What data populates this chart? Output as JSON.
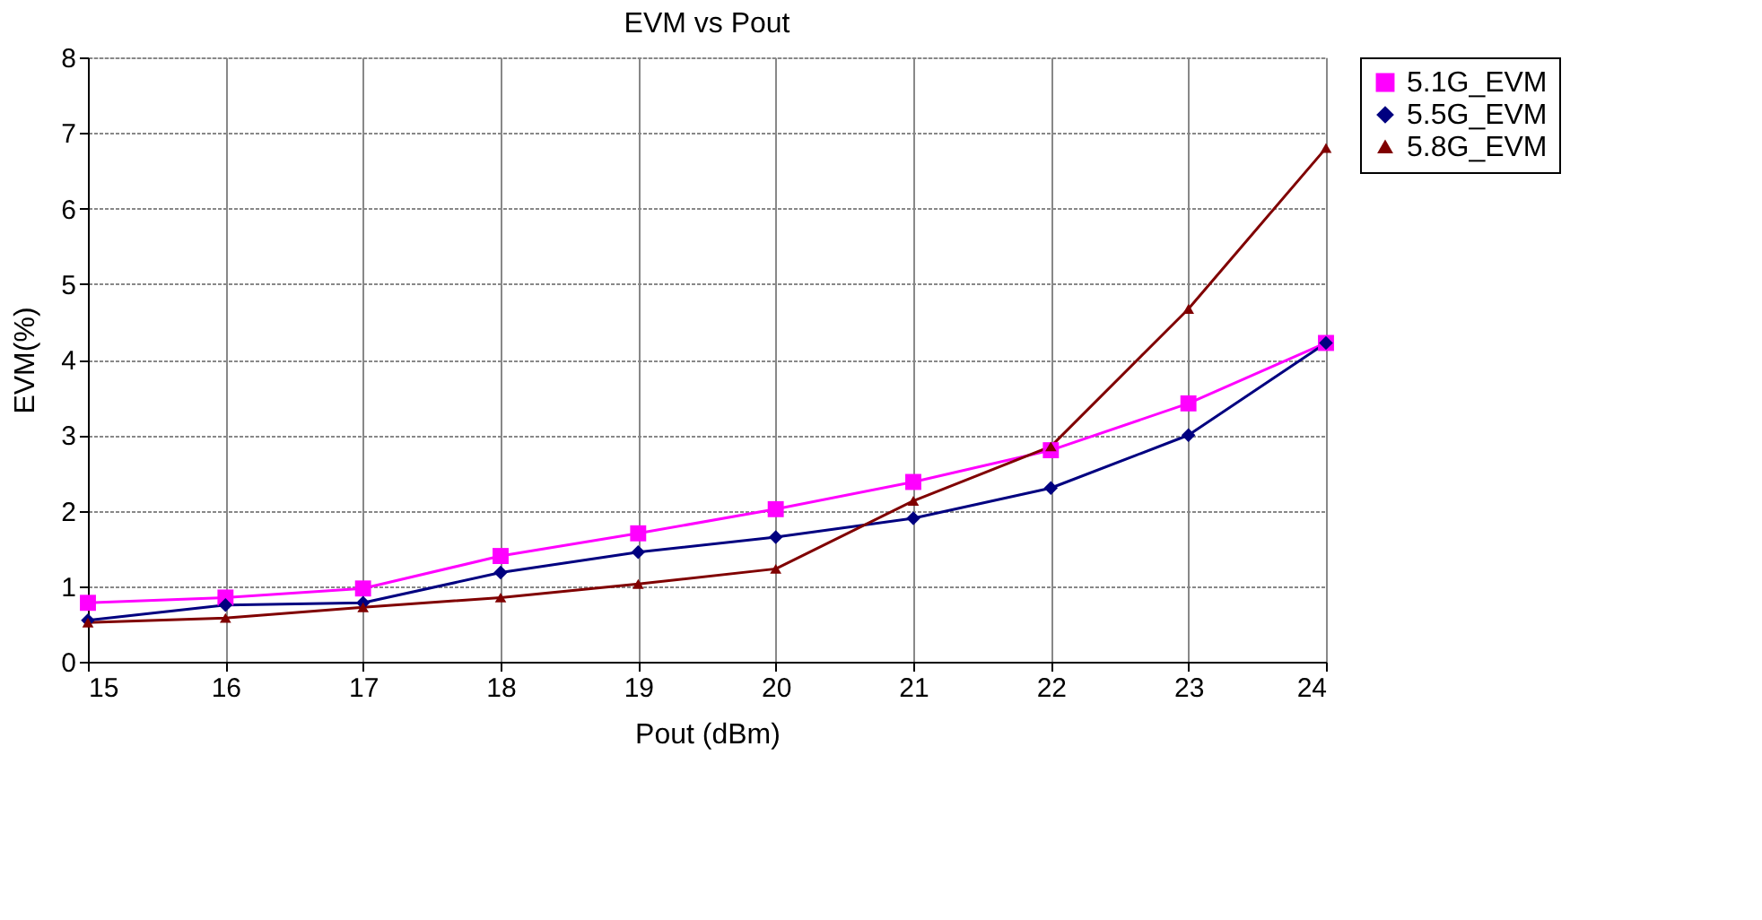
{
  "chart_data": {
    "type": "line",
    "title": "EVM vs Pout",
    "xlabel": "Pout (dBm)",
    "ylabel": "EVM(%)",
    "x": [
      15,
      16,
      17,
      18,
      19,
      20,
      21,
      22,
      23,
      24
    ],
    "series": [
      {
        "name": "5.1G_EVM",
        "color": "#ff00ff",
        "marker": "square",
        "values": [
          0.78,
          0.85,
          0.97,
          1.4,
          1.7,
          2.02,
          2.38,
          2.8,
          3.42,
          4.22
        ]
      },
      {
        "name": "5.5G_EVM",
        "color": "#000080",
        "marker": "diamond",
        "values": [
          0.55,
          0.75,
          0.78,
          1.18,
          1.45,
          1.65,
          1.9,
          2.3,
          3.0,
          4.22
        ]
      },
      {
        "name": "5.8G_EVM",
        "color": "#800000",
        "marker": "triangle",
        "values": [
          0.52,
          0.58,
          0.72,
          0.85,
          1.03,
          1.23,
          2.13,
          2.85,
          4.67,
          6.8
        ]
      }
    ],
    "xlim": [
      15,
      24
    ],
    "xticks": [
      15,
      16,
      17,
      18,
      19,
      20,
      21,
      22,
      23,
      24
    ],
    "ylim": [
      0,
      8
    ],
    "yticks": [
      0,
      1,
      2,
      3,
      4,
      5,
      6,
      7,
      8
    ],
    "grid": true,
    "legend": "right",
    "line_style": "solid"
  }
}
